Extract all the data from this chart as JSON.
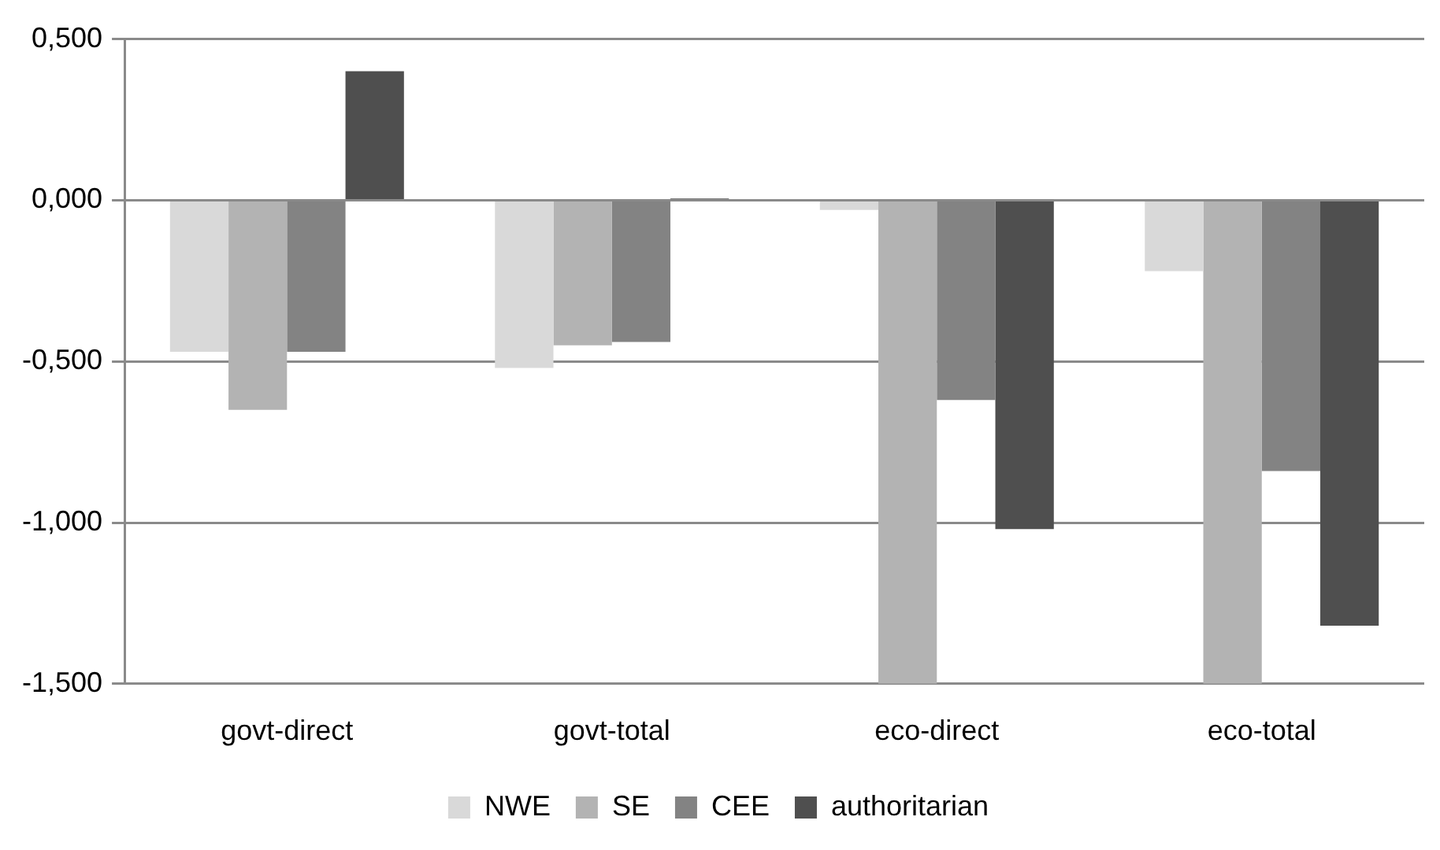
{
  "chart_data": {
    "type": "bar",
    "categories": [
      "govt-direct",
      "govt-total",
      "eco-direct",
      "eco-total"
    ],
    "series": [
      {
        "name": "NWE",
        "color": "#d9d9d9",
        "values": [
          -0.47,
          -0.52,
          -0.03,
          -0.22
        ]
      },
      {
        "name": "SE",
        "color": "#b3b3b3",
        "values": [
          -0.65,
          -0.45,
          -1.5,
          -1.5
        ]
      },
      {
        "name": "CEE",
        "color": "#838383",
        "values": [
          -0.47,
          -0.44,
          -0.62,
          -0.84
        ]
      },
      {
        "name": "authoritarian",
        "color": "#4f4f4f",
        "values": [
          0.4,
          0.005,
          -1.02,
          -1.32
        ]
      }
    ],
    "ylim": [
      -1.5,
      0.5
    ],
    "yticks": [
      {
        "value": -1.5,
        "label": "-1,500"
      },
      {
        "value": -1,
        "label": "-1,000"
      },
      {
        "value": -0.5,
        "label": "-0,500"
      },
      {
        "value": 0,
        "label": "0,000"
      },
      {
        "value": 0.5,
        "label": "0,500"
      }
    ],
    "grid": "y",
    "legend": "bottom"
  }
}
